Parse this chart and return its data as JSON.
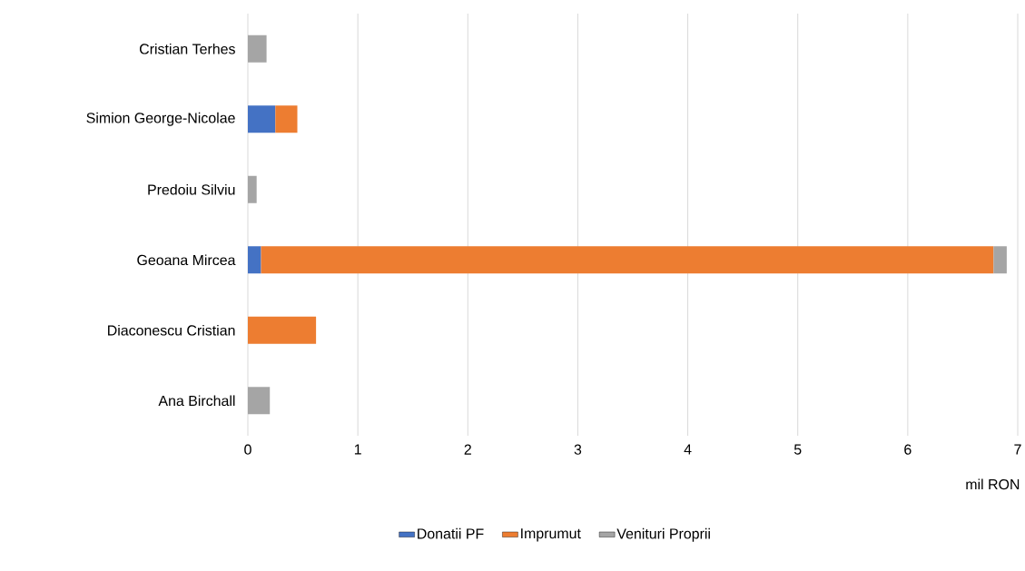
{
  "chart_data": {
    "type": "bar",
    "orientation": "horizontal",
    "stacked": true,
    "categories": [
      "Cristian Terhes",
      "Simion George-Nicolae",
      "Predoiu Silviu",
      "Geoana Mircea",
      "Diaconescu Cristian",
      "Ana Birchall"
    ],
    "series": [
      {
        "name": "Donatii PF",
        "color": "#4472c4",
        "values": [
          null,
          0.25,
          null,
          0.12,
          null,
          null
        ]
      },
      {
        "name": "Imprumut",
        "color": "#ed7d31",
        "values": [
          null,
          0.2,
          null,
          6.66,
          0.62,
          null
        ]
      },
      {
        "name": "Venituri Proprii",
        "color": "#a5a5a5",
        "values": [
          0.17,
          null,
          0.08,
          0.12,
          null,
          0.2
        ]
      }
    ],
    "xlabel": "mil RON",
    "xlim": [
      0,
      7
    ],
    "xticks": [
      0,
      1,
      2,
      3,
      4,
      5,
      6,
      7
    ],
    "grid": "x",
    "legend": "bottom"
  }
}
